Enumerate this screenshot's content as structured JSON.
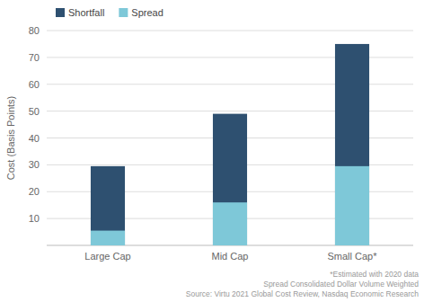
{
  "chart_data": {
    "type": "bar",
    "categories": [
      "Large Cap",
      "Mid Cap",
      "Small Cap*"
    ],
    "series": [
      {
        "name": "Shortfall",
        "color": "#2e5070",
        "values": [
          29.5,
          49.0,
          75.0
        ]
      },
      {
        "name": "Spread",
        "color": "#7ec8d8",
        "values": [
          5.5,
          16.0,
          29.5
        ]
      }
    ],
    "ylabel": "Cost (Basis Points)",
    "ylim": [
      0,
      80
    ],
    "yticks": [
      10,
      20,
      30,
      40,
      50,
      60,
      70,
      80
    ],
    "grid": true,
    "stacked": false,
    "legend": "upper left",
    "annotations": [
      "*Estimated with 2020 data",
      "Spread Consolidated Dollar Volume Weighted",
      "Source: Virtu 2021 Global Cost Review, Nasdaq Economic Research"
    ]
  }
}
